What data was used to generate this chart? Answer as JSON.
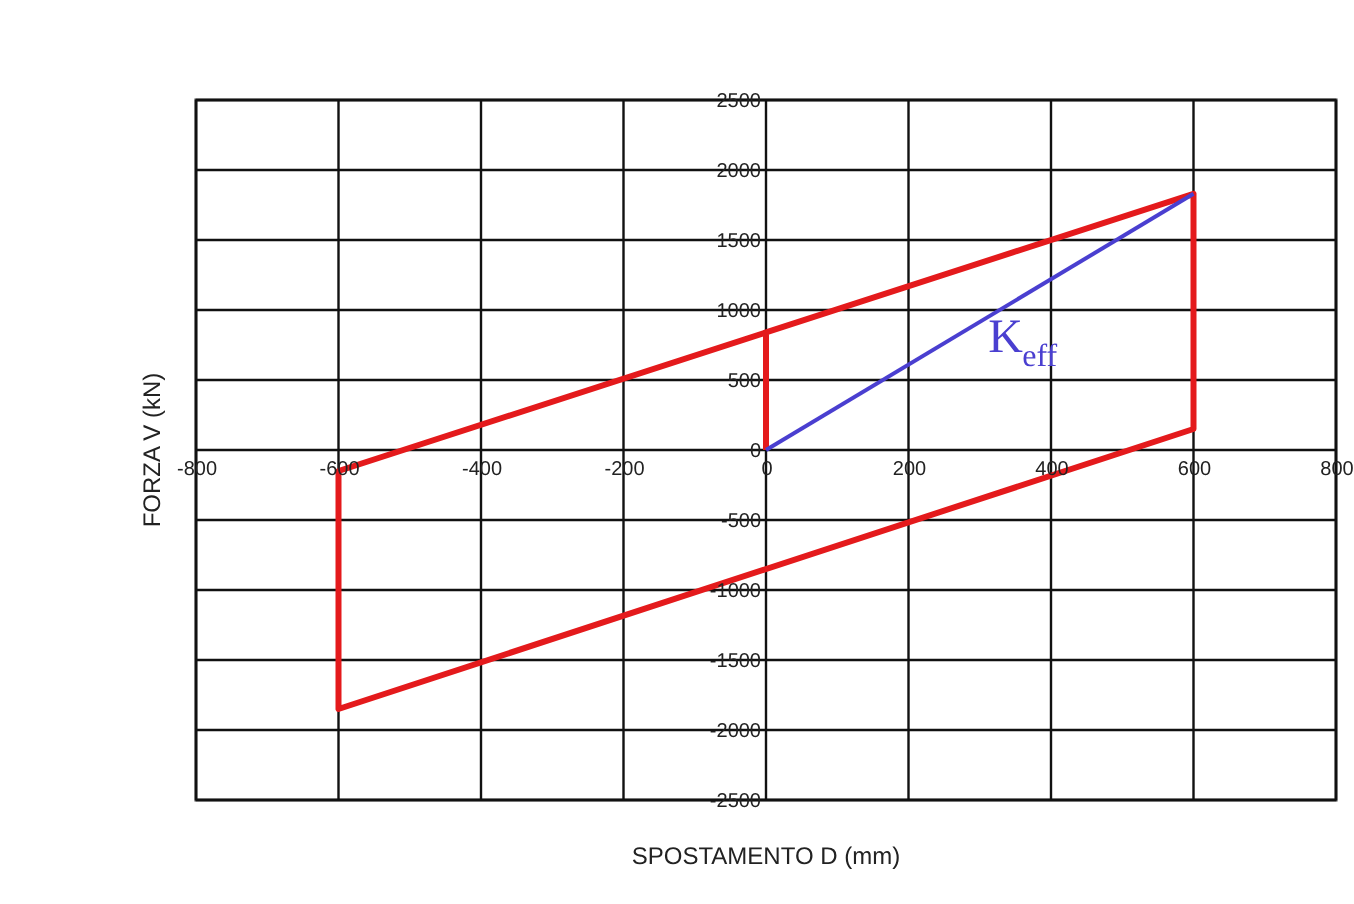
{
  "chart_data": {
    "type": "line",
    "xlabel": "SPOSTAMENTO D (mm)",
    "ylabel": "FORZA V (kN)",
    "xlim": [
      -800,
      800
    ],
    "xticks": [
      -800,
      -600,
      -400,
      -200,
      0,
      200,
      400,
      600,
      800
    ],
    "ylim": [
      -2500,
      2500
    ],
    "yticks": [
      -2500,
      -2000,
      -1500,
      -1000,
      -500,
      0,
      500,
      1000,
      1500,
      2000,
      2500
    ],
    "grid": true,
    "marker": "none",
    "line_style": "solid",
    "series": [
      {
        "color": "#e41a1c",
        "x": [
          0,
          0,
          600,
          600,
          -600,
          -600,
          0
        ],
        "values": [
          0,
          840,
          1830,
          150,
          -1850,
          -150,
          840
        ]
      },
      {
        "color": "#4a3fd0",
        "x": [
          0,
          600
        ],
        "values": [
          0,
          1830
        ]
      }
    ],
    "annotations": [
      "K$_{eff}$"
    ]
  }
}
